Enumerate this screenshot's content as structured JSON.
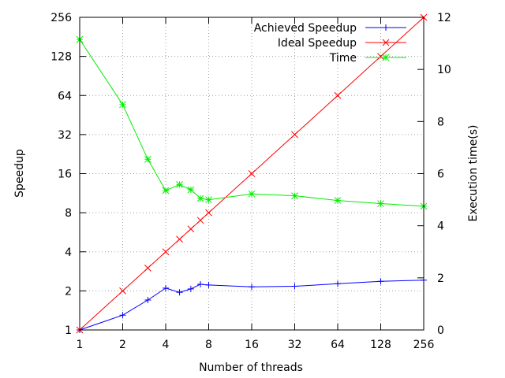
{
  "chart_data": {
    "type": "line",
    "xlabel": "Number of threads",
    "ylabel": "Speedup",
    "y2label": "Execution time(s)",
    "x_scale": "log2",
    "y_scale": "log2",
    "x_ticks": [
      1,
      2,
      4,
      8,
      16,
      32,
      64,
      128,
      256
    ],
    "y_ticks": [
      1,
      2,
      4,
      8,
      16,
      32,
      64,
      128,
      256
    ],
    "y2_ticks": [
      0,
      2,
      4,
      6,
      8,
      10,
      12
    ],
    "xlim": [
      1,
      256
    ],
    "ylim": [
      1,
      256
    ],
    "y2lim": [
      0,
      12
    ],
    "grid": true,
    "legend_position": "top-right",
    "series": [
      {
        "name": "Achieved Speedup",
        "axis": "left",
        "color": "#0000ff",
        "marker": "plus",
        "x": [
          1,
          2,
          3,
          4,
          5,
          6,
          7,
          8,
          16,
          32,
          64,
          128,
          256
        ],
        "y": [
          1.0,
          1.3,
          1.7,
          2.1,
          1.95,
          2.07,
          2.25,
          2.22,
          2.15,
          2.17,
          2.27,
          2.37,
          2.42
        ]
      },
      {
        "name": "Ideal Speedup",
        "axis": "left",
        "color": "#ff0000",
        "marker": "cross",
        "x": [
          1,
          2,
          3,
          4,
          5,
          6,
          7,
          8,
          16,
          32,
          64,
          128,
          256
        ],
        "y": [
          1,
          2,
          3,
          4,
          5,
          6,
          7,
          8,
          16,
          32,
          64,
          128,
          256
        ]
      },
      {
        "name": "Time",
        "axis": "right",
        "color": "#00ee00",
        "marker": "star",
        "x": [
          1,
          2,
          3,
          4,
          5,
          6,
          7,
          8,
          16,
          32,
          64,
          128,
          256
        ],
        "y": [
          11.15,
          8.65,
          6.55,
          5.35,
          5.58,
          5.38,
          5.05,
          5.0,
          5.22,
          5.15,
          4.97,
          4.85,
          4.75
        ]
      }
    ]
  }
}
